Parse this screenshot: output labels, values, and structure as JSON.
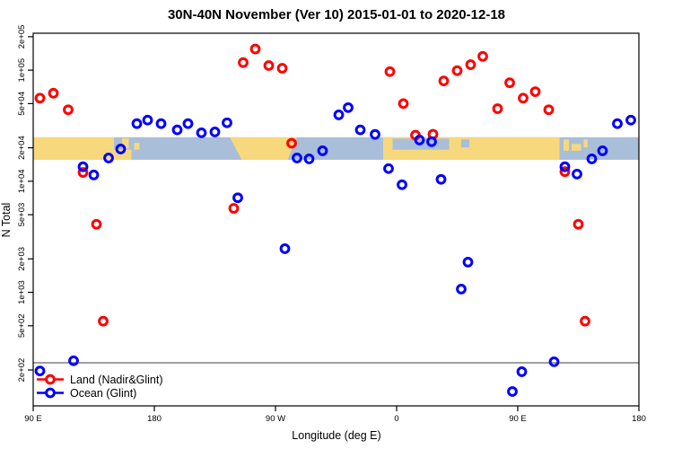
{
  "chart_data": {
    "type": "scatter",
    "title": "30N-40N November (Ver 10)   2015-01-01 to 2020-12-18",
    "xlabel": "Longitude (deg E)",
    "ylabel": "N Total",
    "x_domain": [
      90,
      540
    ],
    "y_domain": [
      95,
      215000
    ],
    "y_scale": "log",
    "grid": false,
    "legend_position": "bottom-left-inside",
    "x_ticks": [
      {
        "lon": 90,
        "label": "90 E"
      },
      {
        "lon": 180,
        "label": "180"
      },
      {
        "lon": 270,
        "label": "90 W"
      },
      {
        "lon": 360,
        "label": "0"
      },
      {
        "lon": 450,
        "label": "90 E"
      },
      {
        "lon": 540,
        "label": "180"
      }
    ],
    "y_ticks": [
      {
        "value": 200000,
        "label": "2e+05"
      },
      {
        "value": 100000,
        "label": "1e+05"
      },
      {
        "value": 50000,
        "label": "5e+04"
      },
      {
        "value": 20000,
        "label": "2e+04"
      },
      {
        "value": 10000,
        "label": "1e+04"
      },
      {
        "value": 5000,
        "label": "5e+03"
      },
      {
        "value": 2000,
        "label": "2e+03"
      },
      {
        "value": 1000,
        "label": "1e+03"
      },
      {
        "value": 500,
        "label": "5e+02"
      },
      {
        "value": 200,
        "label": "2e+02"
      }
    ],
    "threshold_line": {
      "value": 232,
      "color": "#666666"
    },
    "series": [
      {
        "name": "Land (Nadir&Glint)",
        "color": "#ff0000",
        "marker": "open-circle",
        "points": [
          [
            95,
            56000
          ],
          [
            105,
            62000
          ],
          [
            116,
            44000
          ],
          [
            127,
            12000
          ],
          [
            137,
            4100
          ],
          [
            142,
            550
          ],
          [
            239,
            5700
          ],
          [
            246,
            117000
          ],
          [
            255,
            155000
          ],
          [
            265,
            110000
          ],
          [
            275,
            104000
          ],
          [
            282,
            22000
          ],
          [
            355,
            97000
          ],
          [
            365,
            50000
          ],
          [
            374,
            26000
          ],
          [
            387,
            26500
          ],
          [
            395,
            80000
          ],
          [
            405,
            99000
          ],
          [
            415,
            112000
          ],
          [
            424,
            133000
          ],
          [
            435,
            45000
          ],
          [
            444,
            77000
          ],
          [
            454,
            56000
          ],
          [
            463,
            64000
          ],
          [
            473,
            44000
          ],
          [
            485,
            12200
          ],
          [
            495,
            4100
          ],
          [
            500,
            550
          ]
        ]
      },
      {
        "name": "Ocean (Glint)",
        "color": "#0000ff",
        "marker": "open-circle",
        "points": [
          [
            95,
            196
          ],
          [
            120,
            242
          ],
          [
            127,
            13500
          ],
          [
            135,
            11400
          ],
          [
            146,
            16200
          ],
          [
            155,
            19500
          ],
          [
            167,
            33000
          ],
          [
            175,
            35500
          ],
          [
            185,
            33000
          ],
          [
            197,
            29000
          ],
          [
            205,
            33000
          ],
          [
            215,
            27300
          ],
          [
            225,
            27800
          ],
          [
            234,
            33600
          ],
          [
            242,
            7100
          ],
          [
            277,
            2470
          ],
          [
            286,
            16200
          ],
          [
            295,
            15900
          ],
          [
            305,
            18800
          ],
          [
            317,
            39600
          ],
          [
            324,
            46000
          ],
          [
            333,
            29000
          ],
          [
            344,
            26400
          ],
          [
            354,
            13000
          ],
          [
            364,
            9300
          ],
          [
            377,
            23500
          ],
          [
            386,
            22700
          ],
          [
            393,
            10400
          ],
          [
            408,
            1070
          ],
          [
            413,
            1870
          ],
          [
            446,
            128
          ],
          [
            453,
            193
          ],
          [
            477,
            237
          ],
          [
            485,
            13500
          ],
          [
            494,
            11600
          ],
          [
            505,
            15900
          ],
          [
            513,
            18800
          ],
          [
            524,
            33000
          ],
          [
            534,
            35500
          ]
        ]
      }
    ],
    "map_band": {
      "description": "30N-40N latitude strip of world map drawn across plot",
      "top_value": 24900,
      "bottom_value": 15600,
      "ocean_color": "#a9bed8",
      "land_color": "#f7d87c",
      "shapes": [
        {
          "kind": "rect",
          "fill": "ocean",
          "lon": [
            90,
            540
          ],
          "fy": [
            0,
            1
          ]
        },
        {
          "kind": "poly",
          "fill": "land",
          "pts": [
            [
              90,
              0
            ],
            [
              150,
              0
            ],
            [
              150,
              0.55
            ],
            [
              163,
              0.55
            ],
            [
              163,
              1
            ],
            [
              90,
              1
            ]
          ]
        },
        {
          "kind": "rect",
          "fill": "land",
          "lon": [
            156,
            161
          ],
          "fy": [
            0.05,
            0.5
          ]
        },
        {
          "kind": "rect",
          "fill": "land",
          "lon": [
            165,
            169
          ],
          "fy": [
            0.25,
            0.55
          ]
        },
        {
          "kind": "poly",
          "fill": "land",
          "pts": [
            [
              236,
              0
            ],
            [
              286,
              0
            ],
            [
              279,
              1
            ],
            [
              245,
              1
            ]
          ]
        },
        {
          "kind": "rect",
          "fill": "land",
          "lon": [
            350,
            481
          ],
          "fy": [
            0,
            1
          ]
        },
        {
          "kind": "rect",
          "fill": "ocean",
          "lon": [
            357,
            399
          ],
          "fy": [
            0.06,
            0.55
          ]
        },
        {
          "kind": "rect",
          "fill": "ocean",
          "lon": [
            408,
            414
          ],
          "fy": [
            0.1,
            0.45
          ]
        },
        {
          "kind": "rect",
          "fill": "land",
          "lon": [
            484,
            488
          ],
          "fy": [
            0.1,
            0.6
          ]
        },
        {
          "kind": "rect",
          "fill": "land",
          "lon": [
            490,
            497
          ],
          "fy": [
            0.3,
            0.6
          ]
        },
        {
          "kind": "rect",
          "fill": "land",
          "lon": [
            499,
            502
          ],
          "fy": [
            0.1,
            0.45
          ]
        }
      ]
    }
  }
}
